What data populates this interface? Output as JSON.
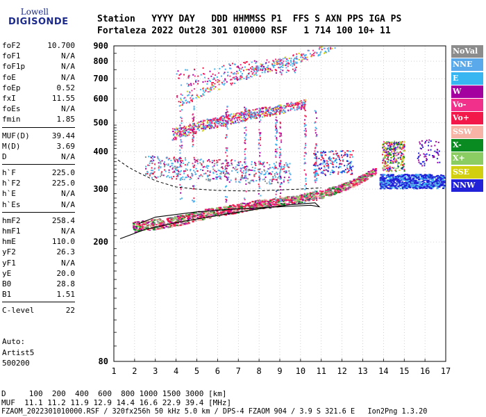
{
  "logo": {
    "line1": "Lowell",
    "line2": "DIGISONDE"
  },
  "header": {
    "labels": "Station   YYYY DAY   DDD HHMMSS P1  FFS S AXN PPS IGA PS",
    "values": "Fortaleza 2022 Out28 301 010000 RSF   1 714 100 10+ 11"
  },
  "params": [
    [
      {
        "k": "foF2",
        "v": "10.700"
      },
      {
        "k": "foF1",
        "v": "N/A"
      },
      {
        "k": "foF1p",
        "v": "N/A"
      },
      {
        "k": "foE",
        "v": "N/A"
      },
      {
        "k": "foEp",
        "v": "0.52"
      },
      {
        "k": "fxI",
        "v": "11.55"
      },
      {
        "k": "foEs",
        "v": "N/A"
      },
      {
        "k": "fmin",
        "v": "1.85"
      }
    ],
    [
      {
        "k": "MUF(D)",
        "v": "39.44"
      },
      {
        "k": "M(D)",
        "v": "3.69"
      },
      {
        "k": "D",
        "v": "N/A"
      }
    ],
    [
      {
        "k": "h`F",
        "v": "225.0"
      },
      {
        "k": "h`F2",
        "v": "225.0"
      },
      {
        "k": "h`E",
        "v": "N/A"
      },
      {
        "k": "h`Es",
        "v": "N/A"
      }
    ],
    [
      {
        "k": "hmF2",
        "v": "258.4"
      },
      {
        "k": "hmF1",
        "v": "N/A"
      },
      {
        "k": "hmE",
        "v": "110.0"
      },
      {
        "k": "yF2",
        "v": "26.3"
      },
      {
        "k": "yF1",
        "v": "N/A"
      },
      {
        "k": "yE",
        "v": "20.0"
      },
      {
        "k": "B0",
        "v": "28.8"
      },
      {
        "k": "B1",
        "v": "1.51"
      }
    ],
    [
      {
        "k": "C-level",
        "v": "22"
      }
    ]
  ],
  "auto": {
    "l1": "Auto:",
    "l2": "Artist5",
    "l3": "500200"
  },
  "footer": {
    "d_line": "D     100  200  400  600  800 1000 1500 3000 [km]",
    "muf_line": "MUF  11.1 11.2 11.9 12.9 14.4 16.6 22.9 39.4 [MHz]",
    "file_line": "FZAOM_2022301010000.RSF / 320fx256h 50 kHz 5.0 km / DPS-4 FZAOM 904 / 3.9 S 321.6 E   Ion2Png 1.3.20"
  },
  "legend": [
    {
      "label": "NoVal",
      "color": "#8c8c8c"
    },
    {
      "label": "NNE",
      "color": "#5aa9ea"
    },
    {
      "label": "E",
      "color": "#38b6f2"
    },
    {
      "label": "W",
      "color": "#a4009f"
    },
    {
      "label": "Vo-",
      "color": "#f0308a"
    },
    {
      "label": "Vo+",
      "color": "#f2194a"
    },
    {
      "label": "SSW",
      "color": "#f7b4a6"
    },
    {
      "label": "X-",
      "color": "#0a8b22"
    },
    {
      "label": "X+",
      "color": "#8bcc63"
    },
    {
      "label": "SSE",
      "color": "#d2cf10"
    },
    {
      "label": "NNW",
      "color": "#2222d8"
    }
  ],
  "chart_data": {
    "type": "scatter",
    "xlim": [
      1,
      17
    ],
    "ylim": [
      80,
      900
    ],
    "x_ticks": [
      1,
      2,
      3,
      4,
      5,
      6,
      7,
      8,
      9,
      10,
      11,
      12,
      13,
      14,
      15,
      16,
      17
    ],
    "y_ticks": [
      80,
      200,
      300,
      400,
      500,
      600,
      700,
      800,
      900
    ],
    "grid": true,
    "legend_position": "right",
    "trace_F2": {
      "x": [
        1.9,
        2.5,
        3,
        3.5,
        4,
        4.5,
        5,
        5.5,
        6,
        6.5,
        7,
        7.5,
        8,
        8.5,
        9,
        9.5,
        10,
        10.5,
        11,
        11.5,
        12,
        12.5,
        13,
        13.5
      ],
      "y": [
        225,
        228,
        230,
        233,
        236,
        240,
        245,
        250,
        253,
        257,
        260,
        265,
        268,
        270,
        273,
        277,
        280,
        285,
        290,
        297,
        305,
        315,
        328,
        345
      ]
    },
    "profile_solid": {
      "x": [
        1.3,
        2.5,
        4,
        6,
        8,
        9.5,
        10.7,
        10.9,
        10.5,
        9,
        7,
        5,
        3,
        2.2
      ],
      "y": [
        205,
        220,
        232,
        245,
        258,
        266,
        270,
        262,
        265,
        262,
        258,
        252,
        242,
        230
      ]
    },
    "profile_dashed": {
      "x": [
        1.2,
        1.7,
        2.2,
        3,
        4,
        5,
        6,
        7,
        8,
        9,
        10,
        11
      ],
      "y": [
        375,
        355,
        340,
        320,
        305,
        300,
        297,
        296,
        296,
        298,
        300,
        303
      ]
    }
  }
}
